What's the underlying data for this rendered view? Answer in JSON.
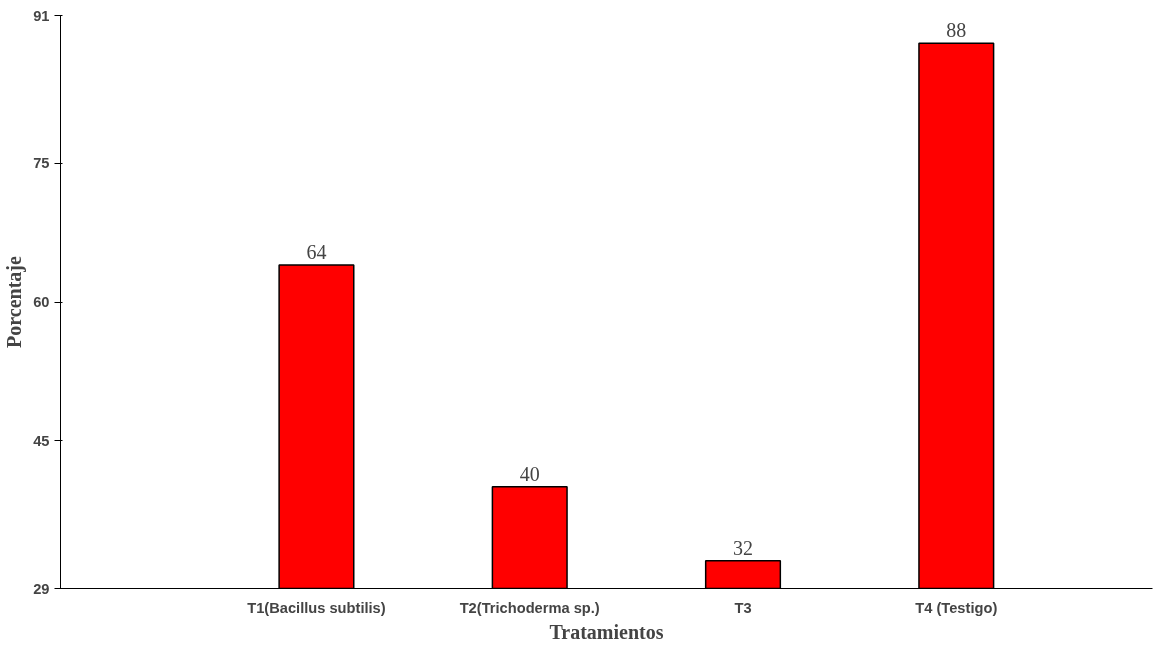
{
  "chart_data": {
    "type": "bar",
    "xlabel": "Tratamientos",
    "ylabel": "Porcentaje",
    "categories": [
      "T1(Bacillus subtilis)",
      "T2(Trichoderma sp.)",
      "T3",
      "T4 (Testigo)"
    ],
    "values": [
      64,
      40,
      32,
      88
    ],
    "color": "#ff0000",
    "ylim": [
      29,
      91
    ],
    "yticks": [
      29,
      45,
      60,
      75,
      91
    ],
    "grid": false,
    "data_labels": true
  }
}
